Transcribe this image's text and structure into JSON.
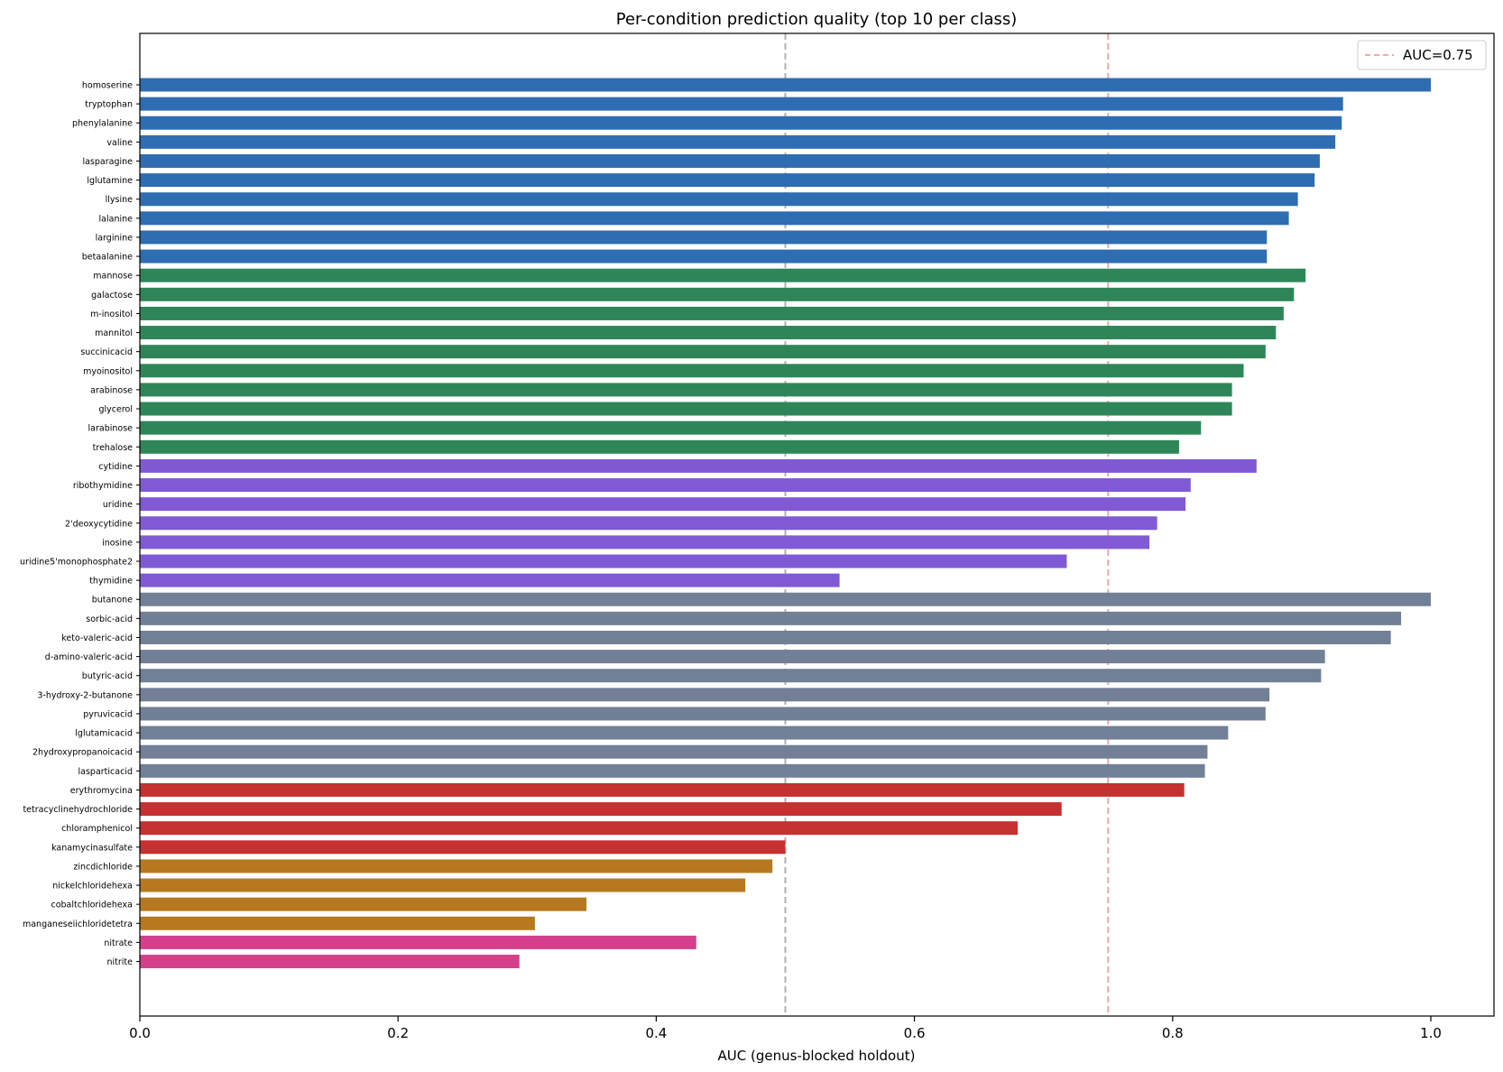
{
  "chart_data": {
    "type": "bar",
    "orientation": "horizontal",
    "title": "Per-condition prediction quality (top 10 per class)",
    "xlabel": "AUC (genus-blocked holdout)",
    "ylabel": "",
    "xlim": [
      0.0,
      1.05
    ],
    "xticks": [
      0.0,
      0.2,
      0.4,
      0.6,
      0.8,
      1.0
    ],
    "xtick_labels": [
      "0.0",
      "0.2",
      "0.4",
      "0.6",
      "0.8",
      "1.0"
    ],
    "grid": false,
    "reference_lines": [
      {
        "value": 0.5,
        "color": "#b0b0b0",
        "style": "dashed",
        "label": ""
      },
      {
        "value": 0.75,
        "color": "#f0a8a8",
        "style": "dashed",
        "label": "AUC=0.75"
      }
    ],
    "legend": {
      "placement": "top-right",
      "entries": [
        "AUC=0.75"
      ]
    },
    "colors": {
      "blue": "#2f6db3",
      "green": "#2e8658",
      "purple": "#805ad5",
      "slate": "#718096",
      "red": "#c53030",
      "orange": "#b7791f",
      "pink": "#d53f8c"
    },
    "bars": [
      {
        "label": "homoserine",
        "value": 1.0,
        "color": "#2f6db3"
      },
      {
        "label": "tryptophan",
        "value": 0.932,
        "color": "#2f6db3"
      },
      {
        "label": "phenylalanine",
        "value": 0.931,
        "color": "#2f6db3"
      },
      {
        "label": "valine",
        "value": 0.926,
        "color": "#2f6db3"
      },
      {
        "label": "lasparagine",
        "value": 0.914,
        "color": "#2f6db3"
      },
      {
        "label": "lglutamine",
        "value": 0.91,
        "color": "#2f6db3"
      },
      {
        "label": "llysine",
        "value": 0.897,
        "color": "#2f6db3"
      },
      {
        "label": "lalanine",
        "value": 0.89,
        "color": "#2f6db3"
      },
      {
        "label": "larginine",
        "value": 0.873,
        "color": "#2f6db3"
      },
      {
        "label": "betaalanine",
        "value": 0.873,
        "color": "#2f6db3"
      },
      {
        "label": "mannose",
        "value": 0.903,
        "color": "#2e8658"
      },
      {
        "label": "galactose",
        "value": 0.894,
        "color": "#2e8658"
      },
      {
        "label": "m-inositol",
        "value": 0.886,
        "color": "#2e8658"
      },
      {
        "label": "mannitol",
        "value": 0.88,
        "color": "#2e8658"
      },
      {
        "label": "succinicacid",
        "value": 0.872,
        "color": "#2e8658"
      },
      {
        "label": "myoinositol",
        "value": 0.855,
        "color": "#2e8658"
      },
      {
        "label": "arabinose",
        "value": 0.846,
        "color": "#2e8658"
      },
      {
        "label": "glycerol",
        "value": 0.846,
        "color": "#2e8658"
      },
      {
        "label": "larabinose",
        "value": 0.822,
        "color": "#2e8658"
      },
      {
        "label": "trehalose",
        "value": 0.805,
        "color": "#2e8658"
      },
      {
        "label": "cytidine",
        "value": 0.865,
        "color": "#805ad5"
      },
      {
        "label": "ribothymidine",
        "value": 0.814,
        "color": "#805ad5"
      },
      {
        "label": "uridine",
        "value": 0.81,
        "color": "#805ad5"
      },
      {
        "label": "2'deoxycytidine",
        "value": 0.788,
        "color": "#805ad5"
      },
      {
        "label": "inosine",
        "value": 0.782,
        "color": "#805ad5"
      },
      {
        "label": "uridine5'monophosphate2",
        "value": 0.718,
        "color": "#805ad5"
      },
      {
        "label": "thymidine",
        "value": 0.542,
        "color": "#805ad5"
      },
      {
        "label": "butanone",
        "value": 1.0,
        "color": "#718096"
      },
      {
        "label": "sorbic-acid",
        "value": 0.977,
        "color": "#718096"
      },
      {
        "label": "keto-valeric-acid",
        "value": 0.969,
        "color": "#718096"
      },
      {
        "label": "d-amino-valeric-acid",
        "value": 0.918,
        "color": "#718096"
      },
      {
        "label": "butyric-acid",
        "value": 0.915,
        "color": "#718096"
      },
      {
        "label": "3-hydroxy-2-butanone",
        "value": 0.875,
        "color": "#718096"
      },
      {
        "label": "pyruvicacid",
        "value": 0.872,
        "color": "#718096"
      },
      {
        "label": "lglutamicacid",
        "value": 0.843,
        "color": "#718096"
      },
      {
        "label": "2hydroxypropanoicacid",
        "value": 0.827,
        "color": "#718096"
      },
      {
        "label": "lasparticacid",
        "value": 0.825,
        "color": "#718096"
      },
      {
        "label": "erythromycina",
        "value": 0.809,
        "color": "#c53030"
      },
      {
        "label": "tetracyclinehydrochloride",
        "value": 0.714,
        "color": "#c53030"
      },
      {
        "label": "chloramphenicol",
        "value": 0.68,
        "color": "#c53030"
      },
      {
        "label": "kanamycinasulfate",
        "value": 0.5,
        "color": "#c53030"
      },
      {
        "label": "zincdichloride",
        "value": 0.49,
        "color": "#b7791f"
      },
      {
        "label": "nickelchloridehexa",
        "value": 0.469,
        "color": "#b7791f"
      },
      {
        "label": "cobaltchloridehexa",
        "value": 0.346,
        "color": "#b7791f"
      },
      {
        "label": "manganeseiichloridetetra",
        "value": 0.306,
        "color": "#b7791f"
      },
      {
        "label": "nitrate",
        "value": 0.431,
        "color": "#d53f8c"
      },
      {
        "label": "nitrite",
        "value": 0.294,
        "color": "#d53f8c"
      }
    ]
  }
}
